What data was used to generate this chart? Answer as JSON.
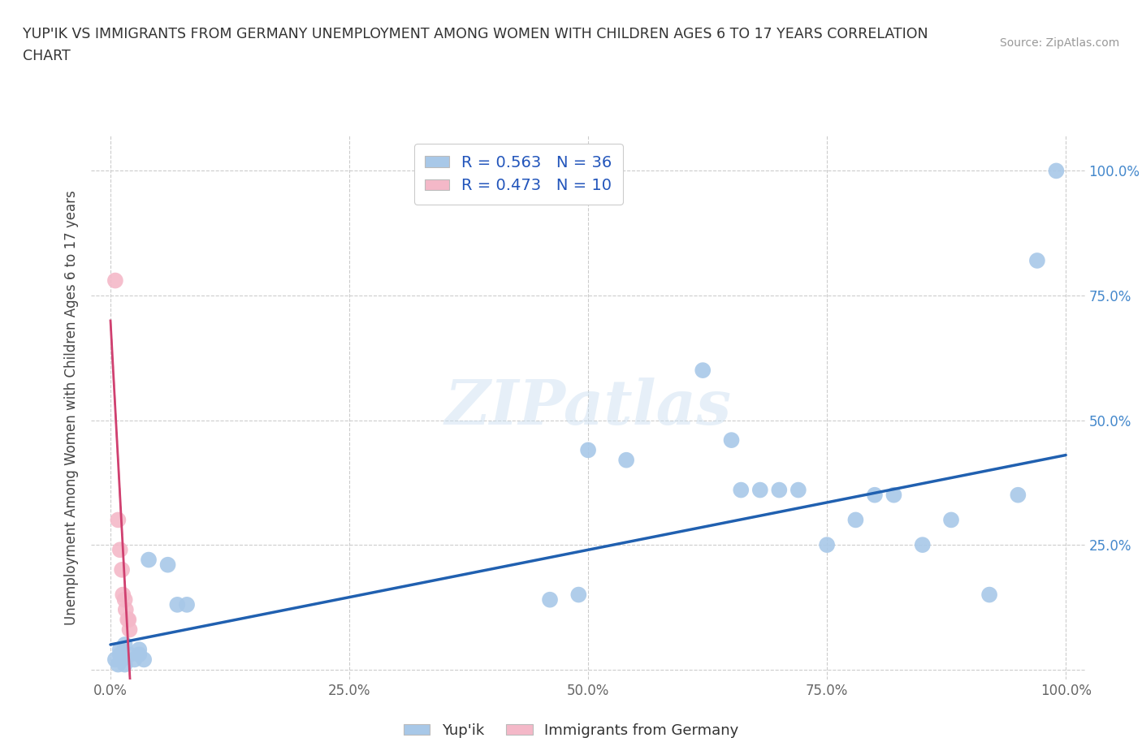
{
  "title_line1": "YUP'IK VS IMMIGRANTS FROM GERMANY UNEMPLOYMENT AMONG WOMEN WITH CHILDREN AGES 6 TO 17 YEARS CORRELATION",
  "title_line2": "CHART",
  "source": "Source: ZipAtlas.com",
  "ylabel": "Unemployment Among Women with Children Ages 6 to 17 years",
  "watermark": "ZIPatlas",
  "legend_label1": "Yup'ik",
  "legend_label2": "Immigrants from Germany",
  "r1": 0.563,
  "n1": 36,
  "r2": 0.473,
  "n2": 10,
  "blue_color": "#a8c8e8",
  "pink_color": "#f4b8c8",
  "blue_line_color": "#2060b0",
  "pink_line_color": "#d04070",
  "pink_dash_color": "#d8a0b0",
  "blue_scatter": [
    [
      0.005,
      0.02
    ],
    [
      0.008,
      0.01
    ],
    [
      0.01,
      0.03
    ],
    [
      0.01,
      0.04
    ],
    [
      0.012,
      0.02
    ],
    [
      0.015,
      0.01
    ],
    [
      0.015,
      0.05
    ],
    [
      0.02,
      0.03
    ],
    [
      0.025,
      0.02
    ],
    [
      0.03,
      0.04
    ],
    [
      0.03,
      0.03
    ],
    [
      0.035,
      0.02
    ],
    [
      0.04,
      0.22
    ],
    [
      0.06,
      0.21
    ],
    [
      0.07,
      0.13
    ],
    [
      0.08,
      0.13
    ],
    [
      0.46,
      0.14
    ],
    [
      0.49,
      0.15
    ],
    [
      0.5,
      0.44
    ],
    [
      0.54,
      0.42
    ],
    [
      0.62,
      0.6
    ],
    [
      0.65,
      0.46
    ],
    [
      0.66,
      0.36
    ],
    [
      0.68,
      0.36
    ],
    [
      0.7,
      0.36
    ],
    [
      0.72,
      0.36
    ],
    [
      0.75,
      0.25
    ],
    [
      0.78,
      0.3
    ],
    [
      0.8,
      0.35
    ],
    [
      0.82,
      0.35
    ],
    [
      0.85,
      0.25
    ],
    [
      0.88,
      0.3
    ],
    [
      0.92,
      0.15
    ],
    [
      0.95,
      0.35
    ],
    [
      0.97,
      0.82
    ],
    [
      0.99,
      1.0
    ]
  ],
  "pink_scatter": [
    [
      0.005,
      0.78
    ],
    [
      0.008,
      0.3
    ],
    [
      0.01,
      0.24
    ],
    [
      0.012,
      0.2
    ],
    [
      0.013,
      0.15
    ],
    [
      0.015,
      0.14
    ],
    [
      0.016,
      0.12
    ],
    [
      0.018,
      0.1
    ],
    [
      0.019,
      0.1
    ],
    [
      0.02,
      0.08
    ]
  ],
  "xlim": [
    -0.02,
    1.02
  ],
  "ylim": [
    -0.02,
    1.07
  ],
  "xticks": [
    0.0,
    0.25,
    0.5,
    0.75,
    1.0
  ],
  "yticks": [
    0.0,
    0.25,
    0.5,
    0.75,
    1.0
  ],
  "xticklabels": [
    "0.0%",
    "25.0%",
    "50.0%",
    "75.0%",
    "100.0%"
  ],
  "yticklabels": [
    "",
    "25.0%",
    "50.0%",
    "75.0%",
    "100.0%"
  ],
  "right_yticklabels": [
    "",
    "25.0%",
    "50.0%",
    "75.0%",
    "100.0%"
  ],
  "background_color": "#ffffff",
  "grid_color": "#cccccc"
}
